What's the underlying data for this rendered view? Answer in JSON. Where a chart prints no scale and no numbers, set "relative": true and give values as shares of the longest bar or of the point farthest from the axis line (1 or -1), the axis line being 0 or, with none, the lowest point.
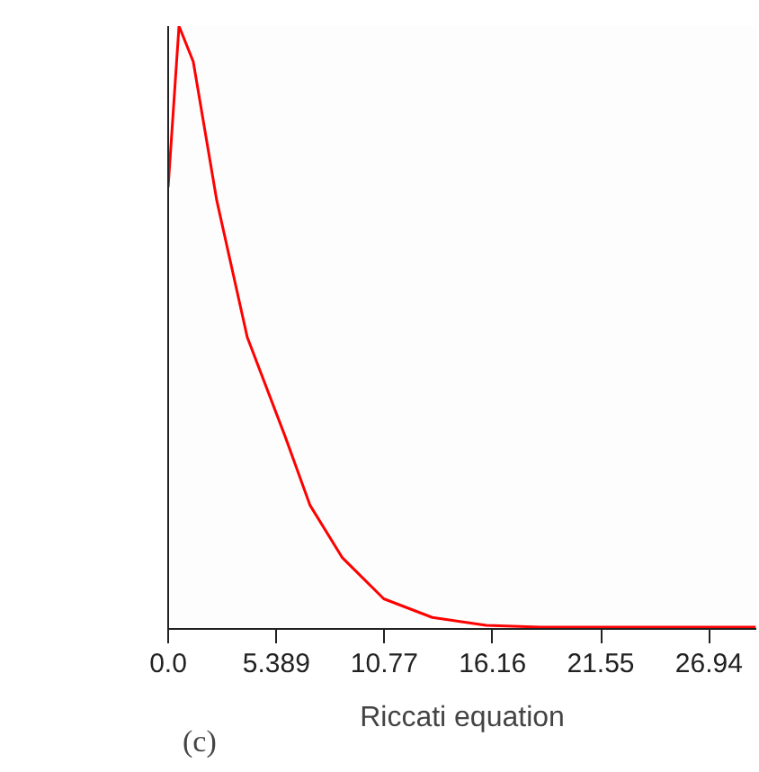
{
  "chart_data": {
    "type": "line",
    "relative": true,
    "xlabel": "Riccati equation",
    "annotations": [
      "(c)"
    ],
    "x": [
      0,
      0.54,
      1.25,
      2.42,
      3.94,
      5.82,
      7.07,
      8.68,
      10.74,
      13.16,
      15.85,
      18.53,
      29.27
    ],
    "series": [
      {
        "color": "#ff0000",
        "values": [
          0.733,
          1.0,
          0.941,
          0.711,
          0.484,
          0.32,
          0.205,
          0.118,
          0.05,
          0.019,
          0.006,
          0.003,
          0.003
        ]
      }
    ],
    "xlim": [
      0,
      29.3
    ],
    "xticks": [
      {
        "value": 0,
        "label": "0.0"
      },
      5.389,
      10.77,
      16.16,
      21.55,
      26.94
    ],
    "tick_labels": "x",
    "grid": false,
    "marker": "none",
    "line_style": "solid"
  }
}
